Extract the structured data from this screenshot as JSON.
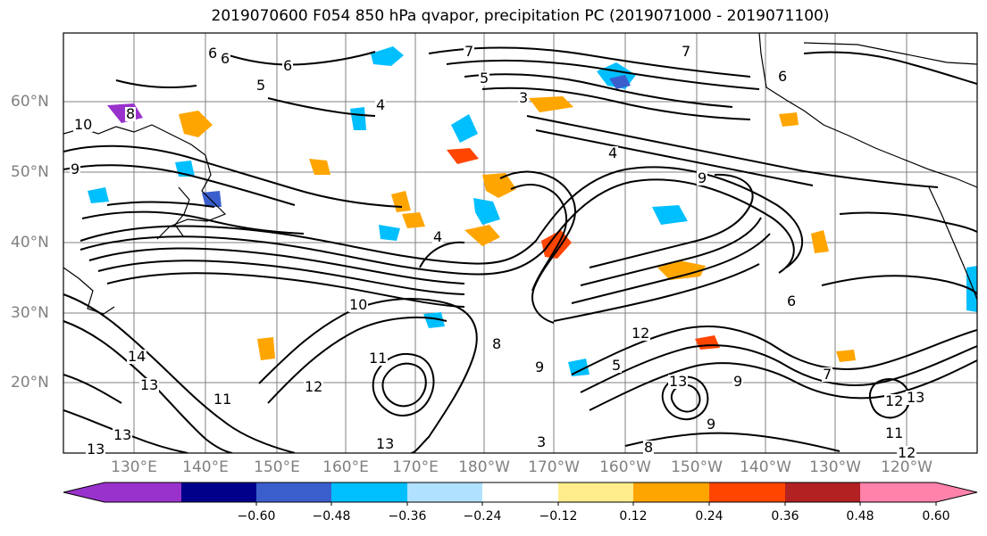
{
  "title": "2019070600 F054 850 hPa qvapor, precipitation PC (2019071000 - 2019071100)",
  "map": {
    "lat_labels": [
      "60°N",
      "50°N",
      "40°N",
      "30°N",
      "20°N"
    ],
    "lon_labels": [
      "130°E",
      "140°E",
      "150°E",
      "160°E",
      "170°E",
      "180°W",
      "170°W",
      "160°W",
      "150°W",
      "140°W",
      "130°W",
      "120°W"
    ],
    "contour_labels": [
      "6",
      "6",
      "6",
      "7",
      "7",
      "5",
      "5",
      "3",
      "6",
      "4",
      "8",
      "10",
      "9",
      "9",
      "4",
      "10",
      "14",
      "13",
      "11",
      "12",
      "11",
      "13",
      "13",
      "8",
      "9",
      "12",
      "13",
      "12",
      "11",
      "13",
      "3",
      "5",
      "12",
      "7",
      "8",
      "9",
      "4",
      "6",
      "9",
      "13"
    ],
    "colors": {
      "land_outline": "#000000",
      "grid": "#808080",
      "contour": "#000000"
    }
  },
  "colorbar": {
    "ticks": [
      "−0.60",
      "−0.48",
      "−0.36",
      "−0.24",
      "−0.12",
      "0.12",
      "0.24",
      "0.36",
      "0.48",
      "0.60"
    ],
    "colors": [
      "#9932CC",
      "#00008B",
      "#3A5FCD",
      "#00BFFF",
      "#B0E2FF",
      "#FFFFFF",
      "#FFEC8B",
      "#FFA500",
      "#FF4500",
      "#B22222",
      "#FF82AB"
    ]
  }
}
